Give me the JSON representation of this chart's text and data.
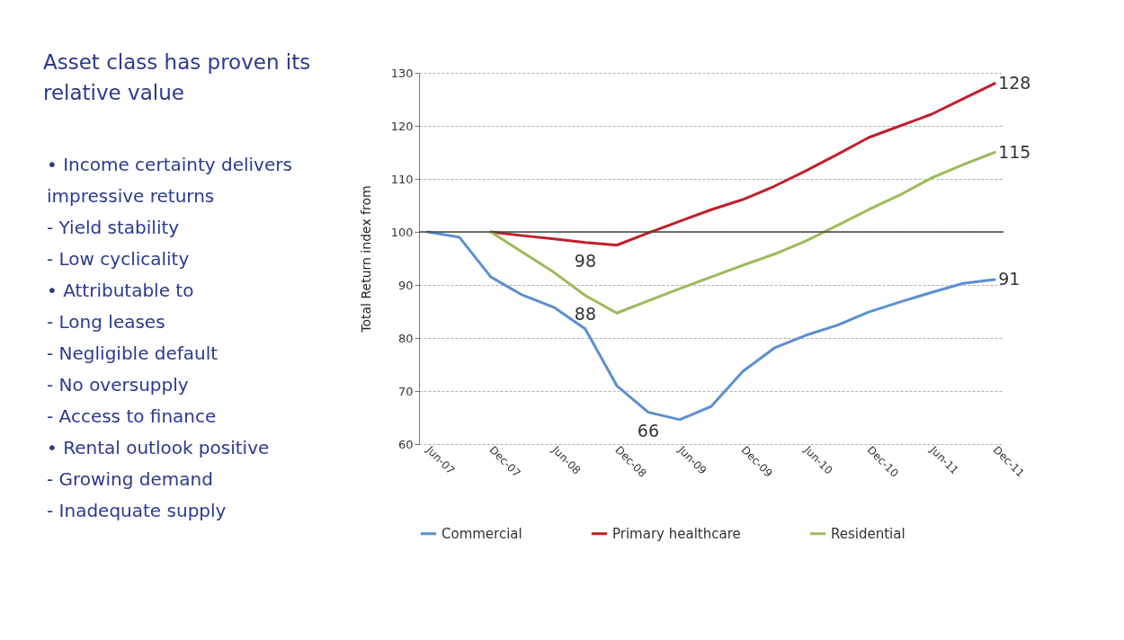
{
  "chart_data": {
    "type": "line",
    "title": "Asset class has proven its relative value",
    "ylabel": "Total Return index from",
    "categories": [
      "Jun-07",
      null,
      "Dec-07",
      null,
      "Jun-08",
      null,
      "Dec-08",
      null,
      "Jun-09",
      null,
      "Dec-09",
      null,
      "Jun-10",
      null,
      "Dec-10",
      null,
      "Jun-11",
      null,
      "Dec-11"
    ],
    "series": [
      {
        "name": "Commercial",
        "color": "#5b8fd0",
        "values": [
          100,
          99.0,
          91.5,
          88.1,
          85.8,
          81.7,
          71.0,
          66,
          64.6,
          67.1,
          73.7,
          78.1,
          80.5,
          82.4,
          84.9,
          86.8,
          88.6,
          90.3,
          91
        ],
        "value_labels": [
          null,
          null,
          null,
          null,
          null,
          null,
          null,
          "66",
          null,
          null,
          null,
          null,
          null,
          null,
          null,
          null,
          null,
          null,
          "91"
        ]
      },
      {
        "name": "Primary healthcare",
        "color": "#c0202a",
        "values": [
          null,
          null,
          100,
          99.3,
          98.7,
          98,
          97.5,
          99.8,
          102,
          104.2,
          106.1,
          108.6,
          111.5,
          114.6,
          117.8,
          120,
          122.2,
          125.1,
          128
        ],
        "value_labels": [
          null,
          null,
          null,
          null,
          null,
          "98",
          null,
          null,
          null,
          null,
          null,
          null,
          null,
          null,
          null,
          null,
          null,
          null,
          "128"
        ]
      },
      {
        "name": "Residential",
        "color": "#9bbb59",
        "values": [
          null,
          null,
          100,
          96.2,
          92.4,
          88,
          84.7,
          87,
          89.3,
          91.5,
          93.7,
          95.8,
          98.3,
          101.2,
          104.2,
          107,
          110.2,
          112.7,
          115
        ],
        "value_labels": [
          null,
          null,
          null,
          null,
          null,
          "88",
          null,
          null,
          null,
          null,
          null,
          null,
          null,
          null,
          null,
          null,
          null,
          null,
          "115"
        ]
      }
    ],
    "ylim": [
      60,
      130
    ],
    "yticks": [
      60,
      70,
      80,
      90,
      100,
      110,
      120,
      130
    ],
    "ref_lines": [
      {
        "axis": "y",
        "value": 100,
        "color": "#404040"
      }
    ],
    "grid": "y",
    "legend": "bottom",
    "marker": "none",
    "line_style": "solid",
    "annotations": [
      "• Income certainty delivers impressive returns",
      "- Yield stability",
      "- Low cyclicality",
      "• Attributable to",
      "- Long leases",
      "- Negligible default",
      "- No oversupply",
      "- Access to finance",
      "• Rental outlook positive",
      "- Growing demand",
      "- Inadequate supply"
    ]
  }
}
